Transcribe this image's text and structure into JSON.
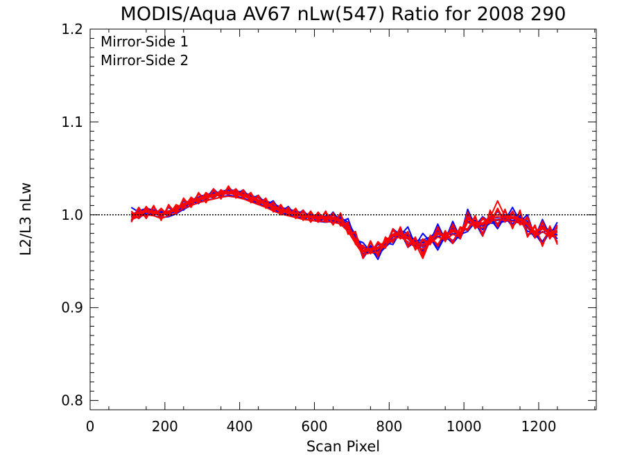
{
  "chart_data": {
    "type": "line",
    "title": "MODIS/Aqua AV67 nLw(547) Ratio for 2008 290",
    "xlabel": "Scan Pixel",
    "ylabel": "L2/L3 nLw",
    "xlim": [
      0,
      1354
    ],
    "ylim": [
      0.79,
      1.2
    ],
    "x_ticks": [
      0,
      200,
      400,
      600,
      800,
      1000,
      1200
    ],
    "x_tick_labels": [
      "0",
      "200",
      "400",
      "600",
      "800",
      "1000",
      "1200"
    ],
    "y_ticks": [
      0.8,
      0.9,
      1.0,
      1.1,
      1.2
    ],
    "y_tick_labels": [
      "0.8",
      "0.9",
      "1.0",
      "1.1",
      "1.2"
    ],
    "reference_line": {
      "y": 1.0,
      "style": "dotted"
    },
    "legend": {
      "placement": "top-left",
      "entries": [
        "Mirror-Side 1",
        "Mirror-Side 2"
      ]
    },
    "colors": {
      "Mirror-Side 1": "#0000ff",
      "Mirror-Side 2": "#ff0000"
    },
    "x": [
      110,
      130,
      150,
      170,
      190,
      210,
      230,
      250,
      270,
      290,
      310,
      330,
      350,
      370,
      390,
      410,
      430,
      450,
      470,
      490,
      510,
      530,
      550,
      570,
      590,
      610,
      630,
      650,
      670,
      690,
      710,
      730,
      750,
      770,
      790,
      810,
      830,
      850,
      870,
      890,
      910,
      930,
      950,
      970,
      990,
      1010,
      1030,
      1050,
      1070,
      1090,
      1110,
      1130,
      1150,
      1170,
      1190,
      1210,
      1230,
      1250
    ],
    "series": [
      {
        "name": "Mirror-Side 1",
        "color": "#0000ff",
        "values": [
          0.997,
          1.001,
          1.004,
          1.002,
          1.0,
          1.001,
          1.004,
          1.009,
          1.013,
          1.016,
          1.019,
          1.02,
          1.022,
          1.024,
          1.023,
          1.021,
          1.018,
          1.015,
          1.012,
          1.009,
          1.005,
          1.003,
          1.001,
          0.999,
          0.997,
          0.996,
          0.995,
          0.996,
          0.994,
          0.989,
          0.975,
          0.961,
          0.963,
          0.96,
          0.968,
          0.976,
          0.98,
          0.977,
          0.969,
          0.97,
          0.973,
          0.98,
          0.975,
          0.983,
          0.977,
          0.996,
          0.99,
          0.988,
          0.994,
          0.994,
          0.996,
          0.997,
          0.995,
          0.99,
          0.978,
          0.985,
          0.98,
          0.982
        ]
      },
      {
        "name": "Mirror-Side 1",
        "color": "#0000ff",
        "values": [
          1.008,
          1.003,
          0.999,
          1.005,
          1.003,
          1.004,
          1.002,
          1.006,
          1.01,
          1.018,
          1.016,
          1.024,
          1.019,
          1.026,
          1.021,
          1.023,
          1.016,
          1.014,
          1.014,
          1.007,
          1.007,
          1.001,
          1.003,
          0.997,
          0.999,
          0.993,
          0.997,
          0.994,
          0.996,
          0.985,
          0.979,
          0.957,
          0.966,
          0.956,
          0.972,
          0.972,
          0.984,
          0.974,
          0.973,
          0.965,
          0.977,
          0.976,
          0.979,
          0.979,
          0.981,
          0.992,
          0.994,
          0.984,
          0.998,
          0.99,
          1.0,
          0.993,
          0.999,
          0.986,
          0.982,
          0.981,
          0.984,
          0.978
        ]
      },
      {
        "name": "Mirror-Side 1",
        "color": "#0000ff",
        "values": [
          0.995,
          0.998,
          1.001,
          0.999,
          0.997,
          0.998,
          1.001,
          1.006,
          1.01,
          1.013,
          1.016,
          1.017,
          1.019,
          1.021,
          1.02,
          1.018,
          1.015,
          1.012,
          1.009,
          1.006,
          1.002,
          1.0,
          0.998,
          0.996,
          0.994,
          0.993,
          0.992,
          0.993,
          0.991,
          0.986,
          0.972,
          0.958,
          0.96,
          0.957,
          0.965,
          0.973,
          0.977,
          0.974,
          0.966,
          0.967,
          0.97,
          0.977,
          0.972,
          0.98,
          0.974,
          0.993,
          0.987,
          0.985,
          0.991,
          0.991,
          0.993,
          0.994,
          0.992,
          0.987,
          0.975,
          0.982,
          0.977,
          0.979
        ]
      },
      {
        "name": "Mirror-Side 1",
        "color": "#0000ff",
        "values": [
          1.0,
          1.004,
          1.007,
          1.005,
          1.003,
          1.004,
          1.007,
          1.012,
          1.016,
          1.019,
          1.022,
          1.023,
          1.025,
          1.027,
          1.026,
          1.024,
          1.021,
          1.018,
          1.015,
          1.012,
          1.008,
          1.006,
          1.004,
          1.002,
          1.0,
          0.999,
          0.998,
          0.999,
          0.997,
          0.992,
          0.978,
          0.964,
          0.966,
          0.963,
          0.971,
          0.979,
          0.983,
          0.98,
          0.972,
          0.973,
          0.976,
          0.983,
          0.978,
          0.986,
          0.98,
          0.999,
          0.993,
          0.991,
          0.997,
          0.997,
          0.999,
          1.0,
          0.998,
          0.993,
          0.981,
          0.988,
          0.983,
          0.985
        ]
      },
      {
        "name": "Mirror-Side 1",
        "color": "#0000ff",
        "values": [
          1.002,
          0.996,
          1.003,
          1.0,
          1.002,
          0.999,
          1.006,
          1.005,
          1.015,
          1.012,
          1.021,
          1.018,
          1.024,
          1.022,
          1.025,
          1.019,
          1.02,
          1.011,
          1.014,
          1.005,
          1.007,
          0.999,
          1.003,
          0.995,
          0.999,
          0.992,
          0.997,
          0.99,
          0.996,
          0.981,
          0.977,
          0.953,
          0.965,
          0.952,
          0.97,
          0.968,
          0.982,
          0.965,
          0.971,
          0.958,
          0.975,
          0.962,
          0.977,
          0.969,
          0.979,
          0.982,
          0.992,
          0.977,
          0.996,
          0.985,
          0.998,
          0.987,
          0.997,
          0.979,
          0.98,
          0.968,
          0.982,
          0.971
        ]
      },
      {
        "name": "Mirror-Side 1",
        "color": "#0000ff",
        "values": [
          0.993,
          1.006,
          0.999,
          1.009,
          0.998,
          1.008,
          1.002,
          1.015,
          1.011,
          1.023,
          1.017,
          1.028,
          1.02,
          1.03,
          1.022,
          1.027,
          1.017,
          1.021,
          1.011,
          1.015,
          1.003,
          1.009,
          0.999,
          1.005,
          0.995,
          1.002,
          0.993,
          1.003,
          0.992,
          0.996,
          0.973,
          0.97,
          0.96,
          0.968,
          0.966,
          0.985,
          0.978,
          0.987,
          0.967,
          0.98,
          0.971,
          0.99,
          0.973,
          0.993,
          0.975,
          1.006,
          0.988,
          0.998,
          0.992,
          1.004,
          0.994,
          1.008,
          0.993,
          1.0,
          0.976,
          0.995,
          0.978,
          0.992
        ]
      },
      {
        "name": "Mirror-Side 1",
        "color": "#0000ff",
        "values": [
          0.998,
          1.002,
          1.005,
          1.003,
          1.001,
          1.002,
          1.005,
          1.01,
          1.014,
          1.017,
          1.02,
          1.021,
          1.023,
          1.025,
          1.024,
          1.022,
          1.019,
          1.016,
          1.013,
          1.01,
          1.006,
          1.004,
          1.002,
          1.0,
          0.998,
          0.997,
          0.996,
          0.997,
          0.995,
          0.99,
          0.976,
          0.962,
          0.964,
          0.961,
          0.969,
          0.977,
          0.981,
          0.978,
          0.97,
          0.971,
          0.974,
          0.981,
          0.976,
          0.984,
          0.978,
          0.997,
          0.991,
          0.989,
          0.995,
          0.995,
          0.997,
          0.998,
          0.996,
          0.991,
          0.979,
          0.986,
          0.981,
          0.983
        ]
      },
      {
        "name": "Mirror-Side 1",
        "color": "#0000ff",
        "values": [
          1.001,
          1.0,
          1.008,
          1.001,
          1.004,
          0.999,
          1.008,
          1.008,
          1.017,
          1.015,
          1.023,
          1.019,
          1.026,
          1.025,
          1.027,
          1.02,
          1.022,
          1.014,
          1.016,
          1.008,
          1.009,
          1.002,
          1.005,
          0.998,
          1.001,
          0.995,
          0.999,
          0.993,
          0.998,
          0.984,
          0.979,
          0.956,
          0.967,
          0.955,
          0.972,
          0.971,
          0.984,
          0.968,
          0.973,
          0.961,
          0.977,
          0.965,
          0.979,
          0.972,
          0.981,
          0.985,
          0.994,
          0.98,
          0.998,
          0.988,
          1.0,
          0.99,
          0.999,
          0.982,
          0.982,
          0.971,
          0.984,
          0.974
        ]
      },
      {
        "name": "Mirror-Side 2",
        "color": "#ff0000",
        "values": [
          0.998,
          1.001,
          1.003,
          1.002,
          0.999,
          1.002,
          1.005,
          1.01,
          1.013,
          1.016,
          1.018,
          1.02,
          1.022,
          1.023,
          1.022,
          1.02,
          1.017,
          1.014,
          1.011,
          1.007,
          1.004,
          1.002,
          1.0,
          0.998,
          0.997,
          0.996,
          0.996,
          0.995,
          0.993,
          0.985,
          0.972,
          0.96,
          0.962,
          0.963,
          0.97,
          0.977,
          0.979,
          0.974,
          0.968,
          0.966,
          0.972,
          0.979,
          0.976,
          0.982,
          0.979,
          0.995,
          0.99,
          0.989,
          0.996,
          0.998,
          0.997,
          0.996,
          0.994,
          0.989,
          0.98,
          0.985,
          0.979,
          0.981
        ]
      },
      {
        "name": "Mirror-Side 2",
        "color": "#ff0000",
        "values": [
          0.992,
          1.006,
          0.998,
          1.008,
          0.996,
          1.009,
          1.003,
          1.016,
          1.01,
          1.022,
          1.015,
          1.026,
          1.019,
          1.029,
          1.02,
          1.025,
          1.015,
          1.019,
          1.009,
          1.012,
          1.002,
          1.006,
          0.998,
          1.003,
          0.994,
          1.001,
          0.994,
          1.0,
          0.99,
          0.99,
          0.97,
          0.965,
          0.96,
          0.969,
          0.966,
          0.983,
          0.976,
          0.98,
          0.964,
          0.972,
          0.97,
          0.985,
          0.973,
          0.988,
          0.976,
          1.001,
          0.987,
          0.995,
          0.993,
          1.005,
          0.994,
          1.002,
          0.991,
          0.996,
          0.977,
          0.991,
          0.976,
          0.987
        ]
      },
      {
        "name": "Mirror-Side 2",
        "color": "#ff0000",
        "values": [
          1.0,
          1.003,
          1.005,
          1.004,
          1.001,
          1.004,
          1.007,
          1.012,
          1.015,
          1.018,
          1.02,
          1.022,
          1.024,
          1.025,
          1.024,
          1.022,
          1.019,
          1.016,
          1.013,
          1.009,
          1.006,
          1.004,
          1.002,
          1.0,
          0.999,
          0.998,
          0.998,
          0.997,
          0.995,
          0.987,
          0.974,
          0.962,
          0.964,
          0.965,
          0.972,
          0.979,
          0.981,
          0.976,
          0.97,
          0.968,
          0.974,
          0.981,
          0.978,
          0.984,
          0.981,
          0.997,
          0.992,
          0.991,
          0.998,
          1.0,
          0.999,
          0.998,
          0.996,
          0.991,
          0.982,
          0.987,
          0.981,
          0.983
        ]
      },
      {
        "name": "Mirror-Side 2",
        "color": "#ff0000",
        "values": [
          0.995,
          0.998,
          1.0,
          0.999,
          0.996,
          0.999,
          1.002,
          1.007,
          1.01,
          1.013,
          1.015,
          1.017,
          1.019,
          1.02,
          1.019,
          1.017,
          1.014,
          1.011,
          1.008,
          1.004,
          1.001,
          0.999,
          0.997,
          0.995,
          0.994,
          0.993,
          0.993,
          0.992,
          0.99,
          0.982,
          0.969,
          0.957,
          0.959,
          0.96,
          0.967,
          0.974,
          0.976,
          0.971,
          0.965,
          0.963,
          0.969,
          0.976,
          0.973,
          0.979,
          0.976,
          0.992,
          0.987,
          0.986,
          0.993,
          0.995,
          0.994,
          0.993,
          0.991,
          0.986,
          0.977,
          0.982,
          0.976,
          0.978
        ]
      },
      {
        "name": "Mirror-Side 2",
        "color": "#ff0000",
        "values": [
          1.004,
          0.996,
          1.009,
          0.999,
          1.007,
          0.999,
          1.011,
          1.007,
          1.019,
          1.013,
          1.024,
          1.018,
          1.027,
          1.022,
          1.028,
          1.018,
          1.024,
          1.011,
          1.018,
          1.003,
          1.011,
          0.999,
          1.007,
          0.994,
          1.004,
          0.992,
          1.004,
          0.989,
          1.002,
          0.979,
          0.982,
          0.953,
          0.972,
          0.955,
          0.976,
          0.97,
          0.987,
          0.965,
          0.976,
          0.956,
          0.978,
          0.966,
          0.983,
          0.969,
          0.987,
          0.983,
          0.999,
          0.977,
          1.005,
          0.987,
          1.006,
          0.985,
          1.005,
          0.976,
          0.989,
          0.966,
          0.988,
          0.968
        ]
      },
      {
        "name": "Mirror-Side 2",
        "color": "#ff0000",
        "values": [
          0.994,
          1.008,
          0.996,
          1.01,
          0.994,
          1.011,
          1.001,
          1.018,
          1.008,
          1.024,
          1.013,
          1.028,
          1.017,
          1.031,
          1.018,
          1.027,
          1.013,
          1.021,
          1.007,
          1.014,
          1.0,
          1.008,
          0.996,
          1.005,
          0.992,
          1.003,
          0.992,
          1.002,
          0.988,
          0.992,
          0.968,
          0.967,
          0.958,
          0.971,
          0.964,
          0.985,
          0.974,
          0.982,
          0.962,
          0.974,
          0.968,
          0.987,
          0.971,
          0.99,
          0.974,
          1.003,
          0.985,
          0.997,
          0.991,
          1.007,
          0.992,
          1.004,
          0.989,
          0.998,
          0.975,
          0.993,
          0.974,
          0.989
        ]
      },
      {
        "name": "Mirror-Side 2",
        "color": "#ff0000",
        "values": [
          0.999,
          1.002,
          1.004,
          1.003,
          1.0,
          1.003,
          1.006,
          1.011,
          1.014,
          1.017,
          1.019,
          1.021,
          1.023,
          1.024,
          1.023,
          1.021,
          1.018,
          1.015,
          1.012,
          1.008,
          1.005,
          1.003,
          1.001,
          0.999,
          0.998,
          0.997,
          0.997,
          0.996,
          0.994,
          0.986,
          0.973,
          0.961,
          0.963,
          0.964,
          0.971,
          0.978,
          0.98,
          0.975,
          0.969,
          0.953,
          0.973,
          0.98,
          0.977,
          0.983,
          0.98,
          0.996,
          0.991,
          0.99,
          0.997,
          1.015,
          0.998,
          0.997,
          0.995,
          0.99,
          0.981,
          0.986,
          0.98,
          0.982
        ]
      },
      {
        "name": "Mirror-Side 2",
        "color": "#ff0000",
        "values": [
          1.002,
          0.999,
          1.007,
          1.001,
          1.005,
          1.001,
          1.009,
          1.009,
          1.017,
          1.015,
          1.022,
          1.02,
          1.025,
          1.024,
          1.026,
          1.02,
          1.022,
          1.013,
          1.016,
          1.005,
          1.009,
          1.001,
          1.005,
          0.996,
          1.002,
          0.994,
          1.002,
          0.991,
          1.0,
          0.981,
          0.98,
          0.955,
          0.97,
          0.957,
          0.974,
          0.972,
          0.985,
          0.967,
          0.974,
          0.958,
          0.976,
          0.968,
          0.981,
          0.971,
          0.985,
          0.985,
          0.997,
          0.979,
          1.003,
          0.989,
          1.004,
          0.987,
          1.003,
          0.978,
          0.987,
          0.968,
          0.986,
          0.97
        ]
      }
    ]
  }
}
